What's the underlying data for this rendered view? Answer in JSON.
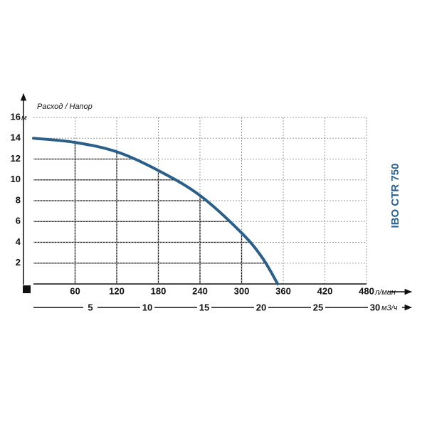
{
  "chart_data": {
    "type": "line",
    "title": "IBO CTR 750",
    "y_label": "Расход / Напор",
    "y_unit": "м",
    "x_unit": "л/мин",
    "x2_unit": "м3/ч",
    "x": [
      0,
      60,
      120,
      180,
      240,
      300,
      330,
      352
    ],
    "values": [
      14,
      13.6,
      12.7,
      10.9,
      8.5,
      4.9,
      2.5,
      0
    ],
    "color": "#2a5f8a",
    "xlim": [
      0,
      480
    ],
    "xticks": [
      60,
      120,
      180,
      240,
      300,
      360,
      420,
      480
    ],
    "ylim": [
      0,
      16
    ],
    "yticks": [
      2,
      4,
      6,
      8,
      10,
      12,
      14,
      16
    ],
    "x2lim": [
      0,
      30
    ],
    "x2ticks": [
      5,
      10,
      15,
      20,
      25,
      30
    ],
    "grid": true
  }
}
